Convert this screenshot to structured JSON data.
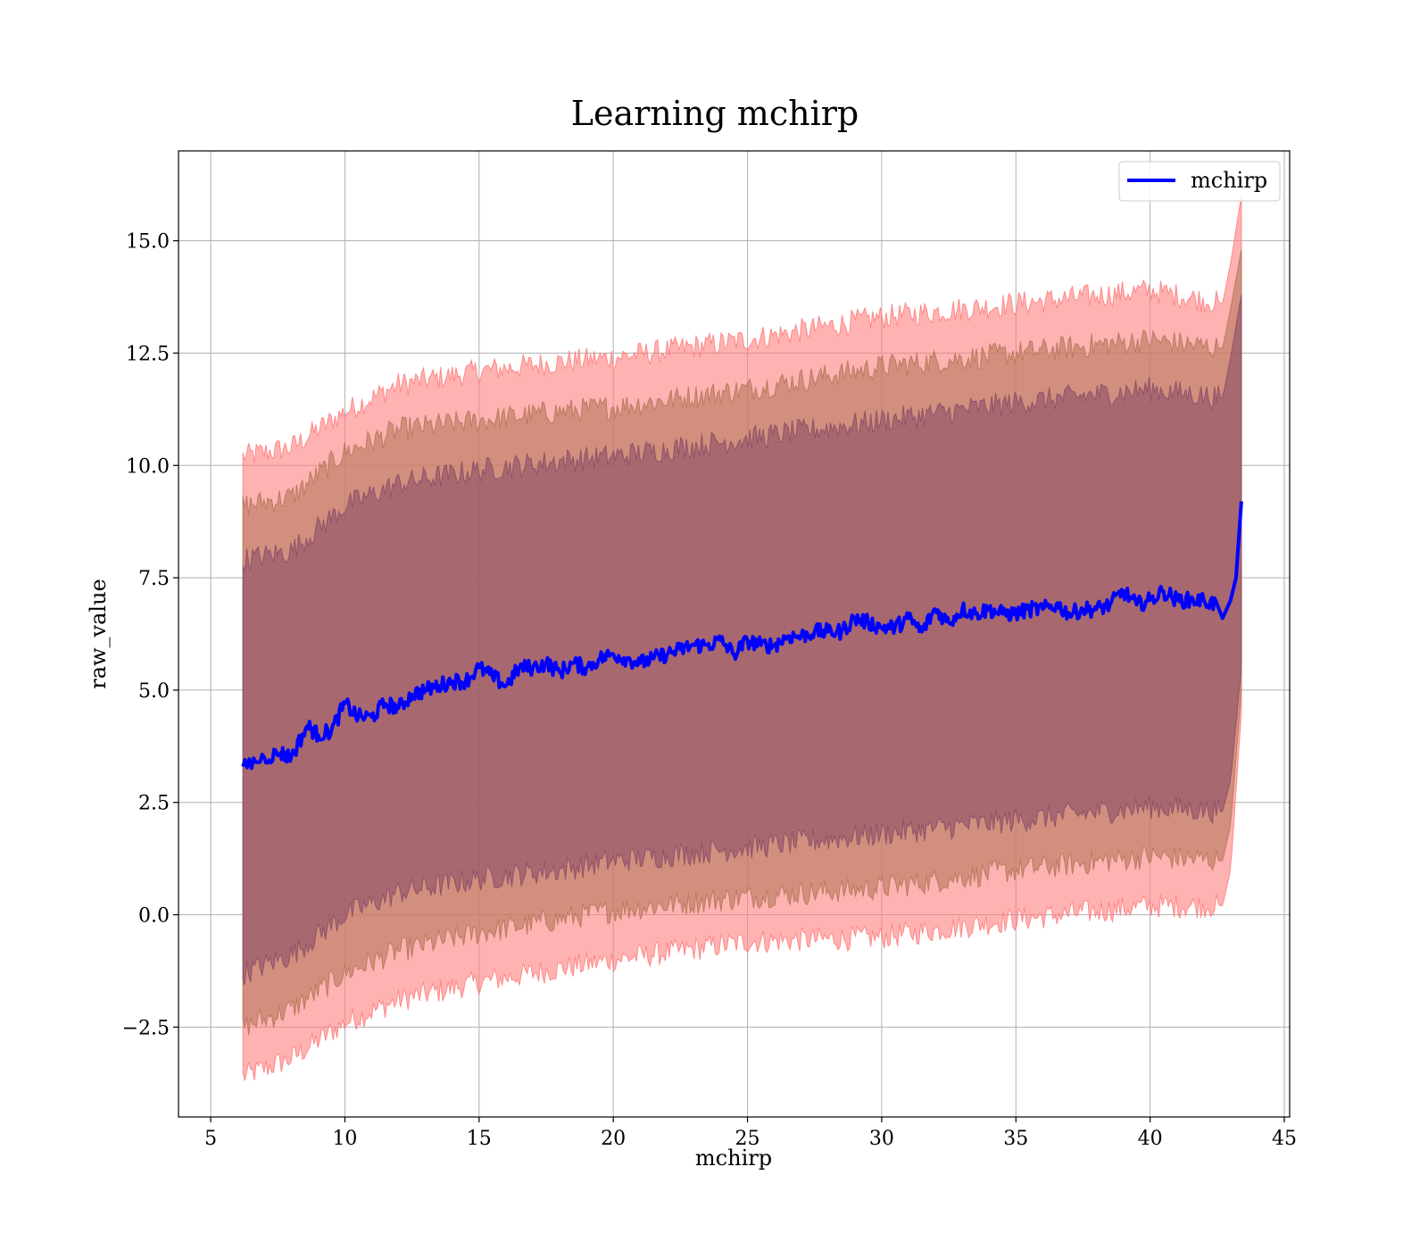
{
  "chart_data": {
    "type": "line",
    "title": "Learning mchirp",
    "xlabel": "mchirp",
    "ylabel": "raw_value",
    "xlim": [
      3.8,
      45.2
    ],
    "ylim": [
      -4.5,
      17.0
    ],
    "xticks": [
      5,
      10,
      15,
      20,
      25,
      30,
      35,
      40,
      45
    ],
    "xtick_labels": [
      "5",
      "10",
      "15",
      "20",
      "25",
      "30",
      "35",
      "40",
      "45"
    ],
    "yticks": [
      -2.5,
      0.0,
      2.5,
      5.0,
      7.5,
      10.0,
      12.5,
      15.0
    ],
    "ytick_labels": [
      "−2.5",
      "0.0",
      "2.5",
      "5.0",
      "7.5",
      "10.0",
      "12.5",
      "15.0"
    ],
    "grid": true,
    "legend": {
      "position": "upper-right",
      "entries": [
        {
          "name": "mchirp",
          "color": "#0000ff"
        }
      ]
    },
    "series": [
      {
        "name": "mchirp",
        "color": "#0000ff",
        "x": [
          6.2,
          7.0,
          7.6,
          8.0,
          8.6,
          9.0,
          9.5,
          10.0,
          10.5,
          11.0,
          11.5,
          12.0,
          12.5,
          13.0,
          13.5,
          14.0,
          14.5,
          15.0,
          15.5,
          16.0,
          16.5,
          17.0,
          17.5,
          18.0,
          18.5,
          19.0,
          19.5,
          20.0,
          20.5,
          21.0,
          21.5,
          22.0,
          22.5,
          23.0,
          23.5,
          24.0,
          24.5,
          25.0,
          25.5,
          26.0,
          26.5,
          27.0,
          27.5,
          28.0,
          28.5,
          29.0,
          29.5,
          30.0,
          30.5,
          31.0,
          31.5,
          32.0,
          32.5,
          33.0,
          33.5,
          34.0,
          34.5,
          35.0,
          35.5,
          36.0,
          36.5,
          37.0,
          37.5,
          38.0,
          38.5,
          39.0,
          39.5,
          40.0,
          40.5,
          41.0,
          41.5,
          42.0,
          42.5,
          42.7,
          43.0,
          43.2,
          43.4
        ],
        "y": [
          3.3,
          3.5,
          3.6,
          3.5,
          4.2,
          4.0,
          4.1,
          4.7,
          4.4,
          4.4,
          4.7,
          4.6,
          4.9,
          5.0,
          5.1,
          5.2,
          5.2,
          5.5,
          5.3,
          5.1,
          5.5,
          5.5,
          5.6,
          5.4,
          5.6,
          5.5,
          5.7,
          5.8,
          5.7,
          5.6,
          5.7,
          5.8,
          5.9,
          6.0,
          6.0,
          6.1,
          5.8,
          6.1,
          6.0,
          6.0,
          6.2,
          6.2,
          6.3,
          6.3,
          6.3,
          6.6,
          6.5,
          6.4,
          6.4,
          6.6,
          6.3,
          6.8,
          6.5,
          6.8,
          6.7,
          6.8,
          6.7,
          6.7,
          6.8,
          6.8,
          6.9,
          6.7,
          6.8,
          6.8,
          6.9,
          7.2,
          6.9,
          7.0,
          7.2,
          7.0,
          7.0,
          7.0,
          6.9,
          6.6,
          7.0,
          7.5,
          9.2
        ]
      }
    ],
    "bands": [
      {
        "color": "#ff7f7f",
        "x": [
          6.2,
          8.0,
          10.0,
          12.0,
          15.0,
          18.0,
          20.0,
          25.0,
          30.0,
          35.0,
          40.0,
          42.7,
          43.0,
          43.4
        ],
        "lower": [
          -3.6,
          -3.2,
          -2.4,
          -1.9,
          -1.5,
          -1.2,
          -1.0,
          -0.6,
          -0.5,
          -0.1,
          0.2,
          0.2,
          1.0,
          4.5
        ],
        "upper": [
          10.2,
          10.4,
          11.2,
          11.8,
          12.1,
          12.3,
          12.4,
          12.8,
          13.3,
          13.6,
          13.9,
          13.6,
          14.5,
          16.0
        ]
      },
      {
        "color": "#b4785a",
        "x": [
          6.2,
          8.0,
          10.0,
          12.0,
          15.0,
          18.0,
          20.0,
          25.0,
          30.0,
          35.0,
          40.0,
          42.7,
          43.0,
          43.4
        ],
        "lower": [
          -2.5,
          -2.1,
          -1.3,
          -0.8,
          -0.4,
          -0.1,
          0.1,
          0.4,
          0.6,
          1.0,
          1.3,
          1.2,
          2.0,
          5.0
        ],
        "upper": [
          9.1,
          9.3,
          10.3,
          10.8,
          11.0,
          11.2,
          11.3,
          11.7,
          12.2,
          12.5,
          12.8,
          12.6,
          13.5,
          14.8
        ]
      },
      {
        "color": "#8c4e68",
        "x": [
          6.2,
          8.0,
          10.0,
          12.0,
          15.0,
          18.0,
          20.0,
          25.0,
          30.0,
          35.0,
          40.0,
          42.7,
          43.0,
          43.4
        ],
        "lower": [
          -1.3,
          -0.9,
          0.0,
          0.5,
          0.8,
          1.0,
          1.2,
          1.5,
          1.8,
          2.1,
          2.4,
          2.3,
          3.0,
          5.5
        ],
        "upper": [
          7.9,
          8.1,
          9.1,
          9.6,
          9.9,
          10.1,
          10.2,
          10.6,
          11.0,
          11.4,
          11.7,
          11.5,
          12.4,
          13.8
        ]
      }
    ]
  }
}
